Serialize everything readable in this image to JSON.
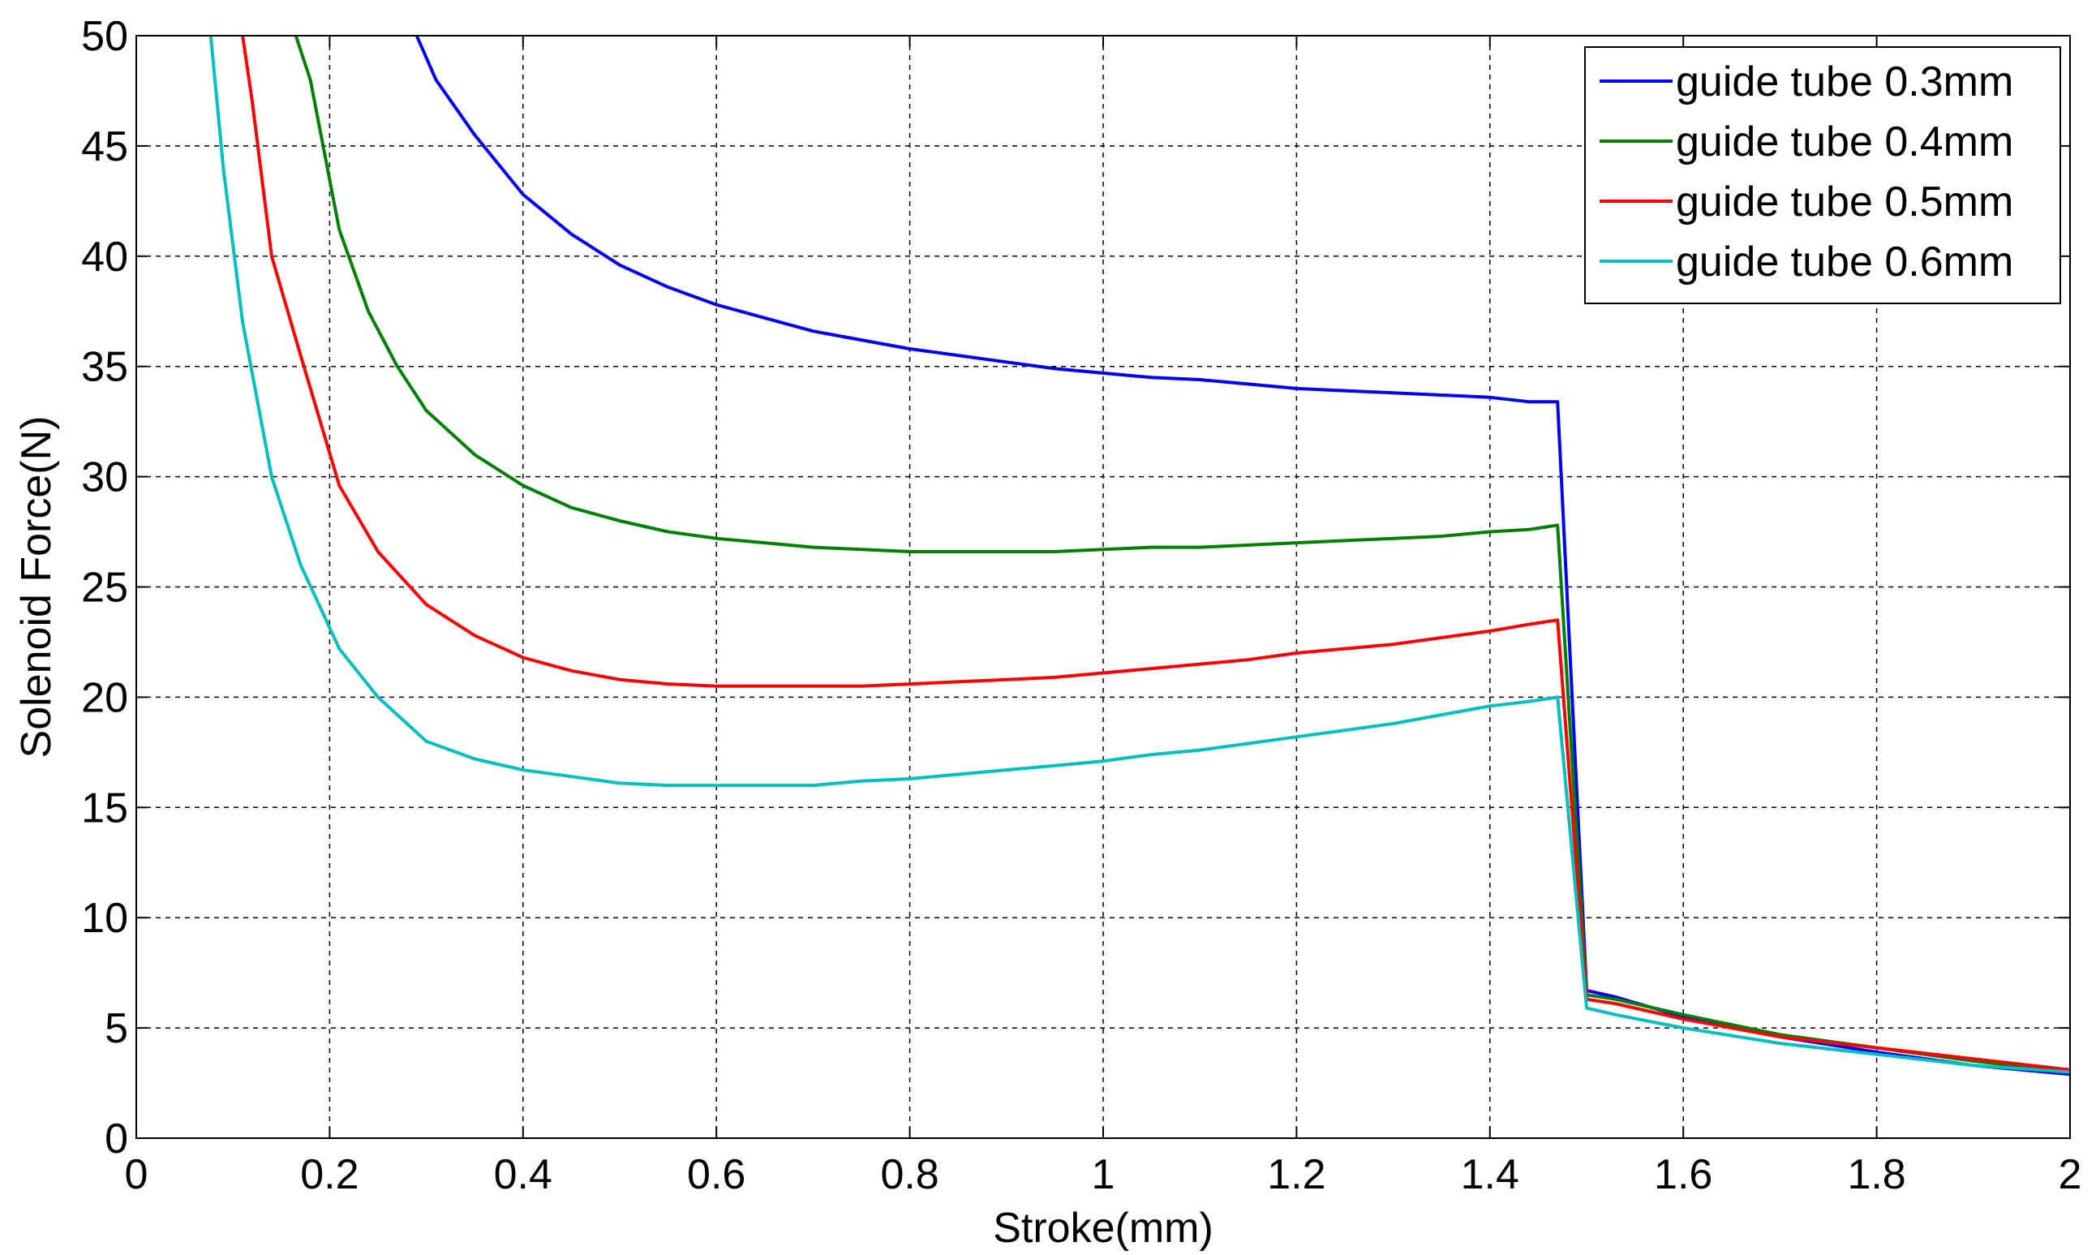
{
  "chart_data": {
    "type": "line",
    "title": "",
    "xlabel": "Stroke(mm)",
    "ylabel": "Solenoid Force(N)",
    "xlim": [
      0,
      2
    ],
    "ylim": [
      0,
      50
    ],
    "xticks": [
      0,
      0.2,
      0.4,
      0.6,
      0.8,
      1,
      1.2,
      1.4,
      1.6,
      1.8,
      2
    ],
    "xtick_labels": [
      "0",
      "0.2",
      "0.4",
      "0.6",
      "0.8",
      "1",
      "1.2",
      "1.4",
      "1.6",
      "1.8",
      "2"
    ],
    "yticks": [
      0,
      5,
      10,
      15,
      20,
      25,
      30,
      35,
      40,
      45,
      50
    ],
    "ytick_labels": [
      "0",
      "5",
      "10",
      "15",
      "20",
      "25",
      "30",
      "35",
      "40",
      "45",
      "50"
    ],
    "grid": true,
    "legend_position": "top-right",
    "series": [
      {
        "name": "guide tube 0.3mm",
        "color": "#0000ff",
        "x": [
          0.29,
          0.31,
          0.35,
          0.4,
          0.45,
          0.5,
          0.55,
          0.6,
          0.65,
          0.7,
          0.75,
          0.8,
          0.85,
          0.9,
          0.95,
          1.0,
          1.05,
          1.1,
          1.15,
          1.2,
          1.25,
          1.3,
          1.35,
          1.4,
          1.44,
          1.47,
          1.5,
          1.53,
          1.6,
          1.7,
          1.8,
          1.9,
          2.0
        ],
        "y": [
          50,
          48.0,
          45.5,
          42.8,
          41.0,
          39.6,
          38.6,
          37.8,
          37.2,
          36.6,
          36.2,
          35.8,
          35.5,
          35.2,
          34.9,
          34.7,
          34.5,
          34.4,
          34.2,
          34.0,
          33.9,
          33.8,
          33.7,
          33.6,
          33.4,
          33.4,
          6.7,
          6.4,
          5.5,
          4.6,
          3.9,
          3.3,
          2.9
        ]
      },
      {
        "name": "guide tube 0.4mm",
        "color": "#008000",
        "x": [
          0.165,
          0.18,
          0.21,
          0.24,
          0.27,
          0.3,
          0.35,
          0.4,
          0.45,
          0.5,
          0.55,
          0.6,
          0.65,
          0.7,
          0.75,
          0.8,
          0.85,
          0.9,
          0.95,
          1.0,
          1.05,
          1.1,
          1.15,
          1.2,
          1.25,
          1.3,
          1.35,
          1.4,
          1.44,
          1.47,
          1.5,
          1.53,
          1.6,
          1.7,
          1.8,
          1.9,
          2.0
        ],
        "y": [
          50,
          48.0,
          41.2,
          37.5,
          35.0,
          33.0,
          31.0,
          29.6,
          28.6,
          28.0,
          27.5,
          27.2,
          27.0,
          26.8,
          26.7,
          26.6,
          26.6,
          26.6,
          26.6,
          26.7,
          26.8,
          26.8,
          26.9,
          27.0,
          27.1,
          27.2,
          27.3,
          27.5,
          27.6,
          27.8,
          6.5,
          6.3,
          5.6,
          4.7,
          4.1,
          3.5,
          3.0
        ]
      },
      {
        "name": "guide tube 0.5mm",
        "color": "#ff0000",
        "x": [
          0.11,
          0.12,
          0.14,
          0.17,
          0.21,
          0.25,
          0.3,
          0.35,
          0.4,
          0.45,
          0.5,
          0.55,
          0.6,
          0.65,
          0.7,
          0.75,
          0.8,
          0.85,
          0.9,
          0.95,
          1.0,
          1.05,
          1.1,
          1.15,
          1.2,
          1.25,
          1.3,
          1.35,
          1.4,
          1.44,
          1.47,
          1.5,
          1.53,
          1.6,
          1.7,
          1.8,
          1.9,
          2.0
        ],
        "y": [
          50,
          47.0,
          40.0,
          35.5,
          29.6,
          26.6,
          24.2,
          22.8,
          21.8,
          21.2,
          20.8,
          20.6,
          20.5,
          20.5,
          20.5,
          20.5,
          20.6,
          20.7,
          20.8,
          20.9,
          21.1,
          21.3,
          21.5,
          21.7,
          22.0,
          22.2,
          22.4,
          22.7,
          23.0,
          23.3,
          23.5,
          6.3,
          6.1,
          5.4,
          4.6,
          4.1,
          3.6,
          3.1
        ]
      },
      {
        "name": "guide tube 0.6mm",
        "color": "#00bfbf",
        "x": [
          0.077,
          0.09,
          0.11,
          0.14,
          0.17,
          0.21,
          0.25,
          0.3,
          0.35,
          0.4,
          0.45,
          0.5,
          0.55,
          0.6,
          0.65,
          0.7,
          0.75,
          0.8,
          0.85,
          0.9,
          0.95,
          1.0,
          1.05,
          1.1,
          1.15,
          1.2,
          1.25,
          1.3,
          1.35,
          1.4,
          1.44,
          1.47,
          1.5,
          1.53,
          1.6,
          1.7,
          1.8,
          1.9,
          2.0
        ],
        "y": [
          50,
          44.0,
          37.0,
          30.0,
          26.0,
          22.2,
          20.0,
          18.0,
          17.2,
          16.7,
          16.4,
          16.1,
          16.0,
          16.0,
          16.0,
          16.0,
          16.2,
          16.3,
          16.5,
          16.7,
          16.9,
          17.1,
          17.4,
          17.6,
          17.9,
          18.2,
          18.5,
          18.8,
          19.2,
          19.6,
          19.8,
          20.0,
          5.9,
          5.6,
          5.0,
          4.3,
          3.8,
          3.3,
          3.0
        ]
      }
    ]
  }
}
